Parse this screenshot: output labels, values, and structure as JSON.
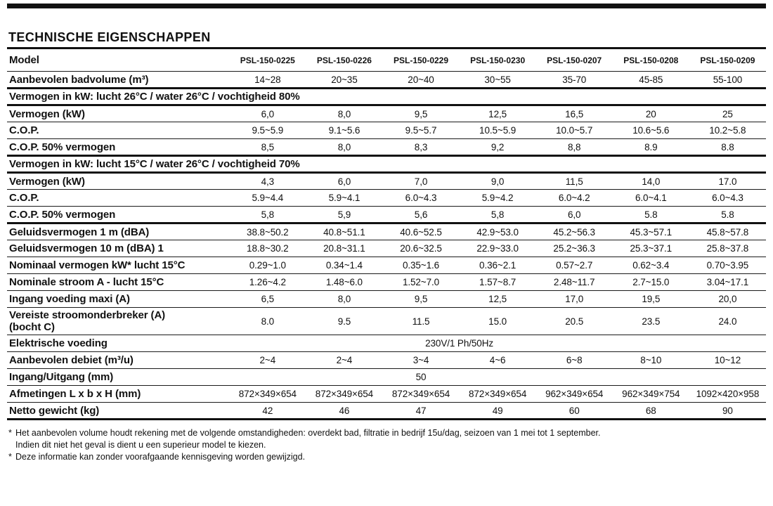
{
  "page": {
    "title": "TECHNISCHE EIGENSCHAPPEN",
    "colors": {
      "ink": "#111111",
      "background": "#ffffff"
    },
    "footnotes": [
      {
        "marker": "*",
        "text": "Het aanbevolen volume houdt rekening met de volgende omstandigheden: overdekt bad, filtratie in bedrijf 15u/dag, seizoen van 1 mei tot 1 september."
      },
      {
        "marker": "",
        "text": "Indien dit niet het geval is dient u een superieur model te kiezen."
      },
      {
        "marker": "*",
        "text": "Deze informatie kan zonder voorafgaande kennisgeving worden gewijzigd."
      }
    ]
  },
  "table": {
    "header": {
      "label": "Model",
      "models": [
        "PSL-150-0225",
        "PSL-150-0226",
        "PSL-150-0229",
        "PSL-150-0230",
        "PSL-150-0207",
        "PSL-150-0208",
        "PSL-150-0209"
      ]
    },
    "rows": [
      {
        "kind": "data",
        "border": "thin",
        "label": "Aanbevolen badvolume (m³)",
        "values": [
          "14~28",
          "20~35",
          "20~40",
          "30~55",
          "35-70",
          "45-85",
          "55-100"
        ]
      },
      {
        "kind": "section",
        "border": "thick",
        "label": "Vermogen in kW: lucht 26°C / water 26°C / vochtigheid 80%"
      },
      {
        "kind": "data",
        "border": "thick",
        "label": "Vermogen (kW)",
        "values": [
          "6,0",
          "8,0",
          "9,5",
          "12,5",
          "16,5",
          "20",
          "25"
        ]
      },
      {
        "kind": "data",
        "border": "thin",
        "label": "C.O.P.",
        "values": [
          "9.5~5.9",
          "9.1~5.6",
          "9.5~5.7",
          "10.5~5.9",
          "10.0~5.7",
          "10.6~5.6",
          "10.2~5.8"
        ]
      },
      {
        "kind": "data",
        "border": "thin",
        "label": "C.O.P. 50% vermogen",
        "values": [
          "8,5",
          "8,0",
          "8,3",
          "9,2",
          "8,8",
          "8.9",
          "8.8"
        ]
      },
      {
        "kind": "section",
        "border": "thick",
        "label": "Vermogen in kW: lucht 15°C / water 26°C / vochtigheid 70%"
      },
      {
        "kind": "data",
        "border": "thick",
        "label": "Vermogen (kW)",
        "values": [
          "4,3",
          "6,0",
          "7,0",
          "9,0",
          "11,5",
          "14,0",
          "17.0"
        ]
      },
      {
        "kind": "data",
        "border": "thin",
        "label": "C.O.P.",
        "values": [
          "5.9~4.4",
          "5.9~4.1",
          "6.0~4.3",
          "5.9~4.2",
          "6.0~4.2",
          "6.0~4.1",
          "6.0~4.3"
        ]
      },
      {
        "kind": "data",
        "border": "thin",
        "label": "C.O.P. 50% vermogen",
        "values": [
          "5,8",
          "5,9",
          "5,6",
          "5,8",
          "6,0",
          "5.8",
          "5.8"
        ]
      },
      {
        "kind": "data",
        "border": "thick",
        "label": "Geluidsvermogen 1 m (dBA)",
        "values": [
          "38.8~50.2",
          "40.8~51.1",
          "40.6~52.5",
          "42.9~53.0",
          "45.2~56.3",
          "45.3~57.1",
          "45.8~57.8"
        ]
      },
      {
        "kind": "data",
        "border": "thin",
        "label": "Geluidsvermogen 10 m (dBA) 1",
        "values": [
          "18.8~30.2",
          "20.8~31.1",
          "20.6~32.5",
          "22.9~33.0",
          "25.2~36.3",
          "25.3~37.1",
          "25.8~37.8"
        ]
      },
      {
        "kind": "data",
        "border": "thin",
        "label": "Nominaal vermogen kW* lucht 15°C",
        "values": [
          "0.29~1.0",
          "0.34~1.4",
          "0.35~1.6",
          "0.36~2.1",
          "0.57~2.7",
          "0.62~3.4",
          "0.70~3.95"
        ]
      },
      {
        "kind": "data",
        "border": "thin",
        "label": "Nominale stroom A - lucht 15°C",
        "values": [
          "1.26~4.2",
          "1.48~6.0",
          "1.52~7.0",
          "1.57~8.7",
          "2.48~11.7",
          "2.7~15.0",
          "3.04~17.1"
        ]
      },
      {
        "kind": "data",
        "border": "thin",
        "label": "Ingang voeding maxi (A)",
        "values": [
          "6,5",
          "8,0",
          "9,5",
          "12,5",
          "17,0",
          "19,5",
          "20,0"
        ]
      },
      {
        "kind": "data",
        "border": "thin",
        "label": "Vereiste stroomonderbreker (A)\n(bocht C)",
        "values": [
          "8.0",
          "9.5",
          "11.5",
          "15.0",
          "20.5",
          "23.5",
          "24.0"
        ]
      },
      {
        "kind": "merged",
        "border": "thin",
        "label": "Elektrische voeding",
        "value": "230V/1 Ph/50Hz",
        "col_start": 2,
        "col_span": 2
      },
      {
        "kind": "data",
        "border": "thin",
        "label": "Aanbevolen debiet (m³/u)",
        "values": [
          "2~4",
          "2~4",
          "3~4",
          "4~6",
          "6~8",
          "8~10",
          "10~12"
        ]
      },
      {
        "kind": "merged",
        "border": "thin",
        "label": "Ingang/Uitgang (mm)",
        "value": "50",
        "col_start": 2,
        "col_span": 1
      },
      {
        "kind": "data",
        "border": "thin",
        "label": "Afmetingen L x b x H (mm)",
        "values": [
          "872×349×654",
          "872×349×654",
          "872×349×654",
          "872×349×654",
          "962×349×654",
          "962×349×754",
          "1092×420×958"
        ]
      },
      {
        "kind": "data",
        "border": "thin",
        "label": "Netto gewicht (kg)",
        "values": [
          "42",
          "46",
          "47",
          "49",
          "60",
          "68",
          "90"
        ]
      }
    ]
  }
}
